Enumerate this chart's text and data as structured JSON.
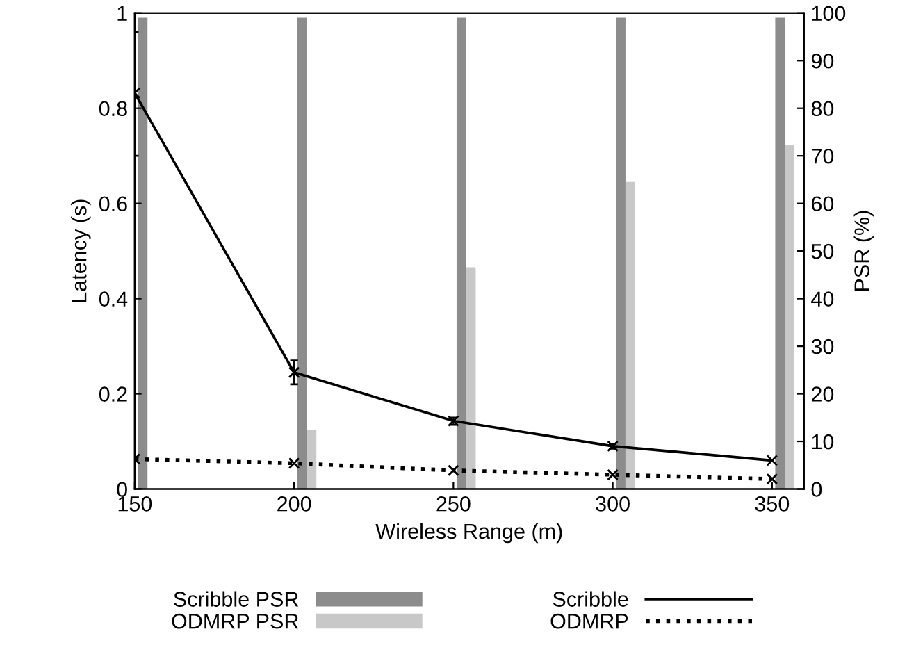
{
  "chart_data": {
    "type": "line",
    "xlabel": "Wireless Range (m)",
    "ylabel": "Latency (s)",
    "y2label": "PSR (%)",
    "x": [
      150,
      200,
      250,
      300,
      350
    ],
    "xlim": [
      150,
      360
    ],
    "xticks": [
      150,
      200,
      250,
      300,
      350
    ],
    "ylim": [
      0,
      1
    ],
    "yticks": [
      0,
      0.2,
      0.4,
      0.6,
      0.8,
      1
    ],
    "y2lim": [
      0,
      100
    ],
    "y2ticks": [
      0,
      10,
      20,
      30,
      40,
      50,
      60,
      70,
      80,
      90,
      100
    ],
    "series": [
      {
        "name": "Scribble PSR",
        "type": "bar",
        "axis": "y2",
        "color": "#8c8c8c",
        "values": [
          99,
          99,
          99,
          99,
          99
        ]
      },
      {
        "name": "ODMRP PSR",
        "type": "bar",
        "axis": "y2",
        "color": "#c8c8c8",
        "values": [
          0,
          12.5,
          46.6,
          64.5,
          72.2
        ]
      },
      {
        "name": "Scribble",
        "color": "#000000",
        "line_style": "solid",
        "marker": "cross",
        "values": [
          0.832,
          0.245,
          0.143,
          0.09,
          0.06
        ],
        "errors": [
          [
            0.7,
            0.96
          ],
          [
            0.22,
            0.27
          ],
          [
            0.135,
            0.15
          ],
          [
            0.085,
            0.095
          ],
          null
        ]
      },
      {
        "name": "ODMRP",
        "color": "#000000",
        "line_style": "dotted",
        "marker": "cross",
        "values": [
          0.063,
          0.054,
          0.039,
          0.03,
          0.021
        ]
      }
    ],
    "grid": false,
    "legend": "bottom"
  }
}
